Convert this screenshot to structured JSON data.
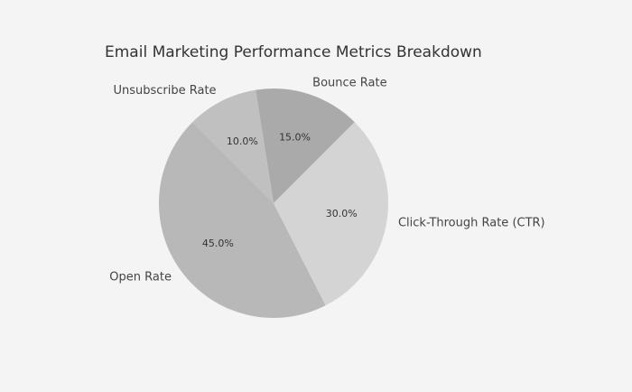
{
  "chart_data": {
    "type": "pie",
    "title": "Email Marketing Performance Metrics Breakdown",
    "start_angle_deg": 45,
    "direction": "counterclockwise",
    "slices": [
      {
        "label": "Bounce Rate",
        "value": 15.0,
        "pct_label": "15.0%",
        "color": "#aaaaaa"
      },
      {
        "label": "Unsubscribe Rate",
        "value": 10.0,
        "pct_label": "10.0%",
        "color": "#c0c0c0"
      },
      {
        "label": "Open Rate",
        "value": 45.0,
        "pct_label": "45.0%",
        "color": "#b8b8b8"
      },
      {
        "label": "Click-Through Rate (CTR)",
        "value": 30.0,
        "pct_label": "30.0%",
        "color": "#d4d4d4"
      }
    ]
  }
}
